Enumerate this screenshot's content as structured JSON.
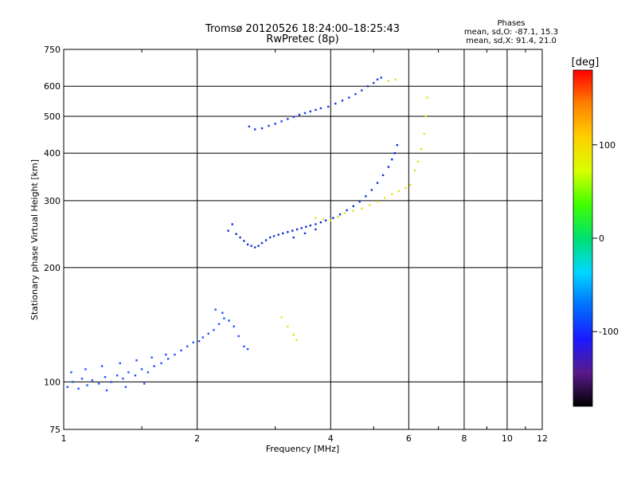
{
  "chart_data": {
    "type": "scatter",
    "title": "Tromsø 20120526 18:24:00–18:25:43",
    "subtitle": "RwPretec (8p)",
    "xlabel": "Frequency [MHz]",
    "ylabel": "Stationary phase Virtual Height [km]",
    "x_scale": "log",
    "y_scale": "log",
    "xlim": [
      1,
      12
    ],
    "ylim": [
      75,
      750
    ],
    "x_ticks": [
      1,
      2,
      4,
      6,
      8,
      10,
      12
    ],
    "x_tick_labels": [
      "1",
      "2",
      "4",
      "6",
      "8",
      "10",
      "12"
    ],
    "y_ticks": [
      75,
      100,
      200,
      300,
      400,
      500,
      600,
      750
    ],
    "y_tick_labels": [
      "75",
      "100",
      "200",
      "300",
      "400",
      "500",
      "600",
      "750"
    ],
    "grid": true,
    "phases": {
      "heading": "Phases",
      "line_o": "mean, sd,O: -87.1, 15.3",
      "line_x": "mean, sd,X:  91.4, 21.0"
    },
    "colorbar": {
      "label": "[deg]",
      "range": [
        -180,
        180
      ],
      "ticks": [
        100,
        0,
        -100
      ],
      "tick_labels": [
        "100",
        "0",
        "-100"
      ],
      "colors": [
        "#000000",
        "#5a1a8c",
        "#1a1aff",
        "#0070ff",
        "#00d8ff",
        "#00e070",
        "#40ff00",
        "#d8ff00",
        "#ffd000",
        "#ff8000",
        "#ff0000"
      ]
    },
    "series": [
      {
        "points": [
          [
            1.02,
            97
          ],
          [
            1.05,
            100
          ],
          [
            1.08,
            96
          ],
          [
            1.1,
            102
          ],
          [
            1.13,
            98
          ],
          [
            1.16,
            101
          ],
          [
            1.2,
            99
          ],
          [
            1.24,
            103
          ],
          [
            1.28,
            100
          ],
          [
            1.32,
            104
          ],
          [
            1.36,
            102
          ],
          [
            1.4,
            106
          ],
          [
            1.45,
            104
          ],
          [
            1.5,
            108
          ],
          [
            1.55,
            106
          ],
          [
            1.6,
            110
          ],
          [
            1.66,
            112
          ],
          [
            1.72,
            115
          ],
          [
            1.78,
            118
          ],
          [
            1.84,
            121
          ],
          [
            1.9,
            124
          ],
          [
            1.96,
            127
          ],
          [
            2.02,
            128
          ],
          [
            2.06,
            131
          ],
          [
            2.12,
            134
          ],
          [
            2.18,
            137
          ],
          [
            2.24,
            142
          ],
          [
            2.3,
            147
          ],
          [
            2.36,
            145
          ],
          [
            2.42,
            140
          ],
          [
            2.48,
            132
          ],
          [
            2.55,
            124
          ],
          [
            2.6,
            122
          ],
          [
            1.04,
            106
          ],
          [
            1.12,
            108
          ],
          [
            1.22,
            110
          ],
          [
            1.34,
            112
          ],
          [
            1.46,
            114
          ],
          [
            1.58,
            116
          ],
          [
            1.7,
            118
          ],
          [
            1.25,
            95
          ],
          [
            1.38,
            97
          ],
          [
            1.52,
            99
          ],
          [
            2.2,
            155
          ],
          [
            2.28,
            152
          ]
        ]
      },
      {
        "points": [
          [
            2.45,
            245
          ],
          [
            2.5,
            240
          ],
          [
            2.55,
            235
          ],
          [
            2.6,
            230
          ],
          [
            2.65,
            228
          ],
          [
            2.7,
            226
          ],
          [
            2.75,
            228
          ],
          [
            2.8,
            232
          ],
          [
            2.86,
            236
          ],
          [
            2.92,
            240
          ],
          [
            2.98,
            242
          ],
          [
            3.05,
            244
          ],
          [
            3.12,
            246
          ],
          [
            3.2,
            248
          ],
          [
            3.28,
            250
          ],
          [
            3.36,
            252
          ],
          [
            3.44,
            254
          ],
          [
            3.52,
            256
          ],
          [
            3.6,
            258
          ],
          [
            3.7,
            260
          ],
          [
            3.8,
            263
          ],
          [
            3.9,
            266
          ],
          [
            4.05,
            270
          ],
          [
            4.2,
            276
          ],
          [
            4.35,
            283
          ],
          [
            4.5,
            290
          ],
          [
            4.65,
            298
          ],
          [
            4.8,
            308
          ],
          [
            4.95,
            320
          ],
          [
            5.1,
            334
          ],
          [
            5.25,
            350
          ],
          [
            5.4,
            368
          ],
          [
            5.5,
            385
          ],
          [
            5.58,
            400
          ],
          [
            5.65,
            420
          ],
          [
            3.3,
            240
          ],
          [
            3.5,
            246
          ],
          [
            3.7,
            252
          ],
          [
            2.4,
            260
          ],
          [
            2.35,
            250
          ]
        ]
      },
      {
        "points": [
          [
            2.62,
            470
          ],
          [
            2.7,
            462
          ],
          [
            2.8,
            465
          ],
          [
            2.9,
            472
          ],
          [
            3.0,
            478
          ],
          [
            3.1,
            485
          ],
          [
            3.2,
            492
          ],
          [
            3.3,
            498
          ],
          [
            3.4,
            505
          ],
          [
            3.5,
            510
          ],
          [
            3.6,
            515
          ],
          [
            3.7,
            520
          ],
          [
            3.8,
            525
          ],
          [
            3.95,
            530
          ],
          [
            4.1,
            540
          ],
          [
            4.25,
            550
          ],
          [
            4.4,
            560
          ],
          [
            4.55,
            572
          ],
          [
            4.7,
            585
          ],
          [
            4.85,
            600
          ],
          [
            5.0,
            612
          ],
          [
            5.1,
            625
          ],
          [
            5.2,
            632
          ]
        ]
      },
      {
        "points": [
          [
            3.7,
            270
          ],
          [
            3.85,
            268
          ],
          [
            4.0,
            266
          ],
          [
            4.15,
            272
          ],
          [
            4.3,
            278
          ],
          [
            4.5,
            282
          ],
          [
            4.7,
            286
          ],
          [
            4.9,
            292
          ],
          [
            5.1,
            298
          ],
          [
            5.3,
            305
          ],
          [
            5.5,
            312
          ],
          [
            5.7,
            318
          ],
          [
            5.9,
            324
          ],
          [
            6.05,
            330
          ],
          [
            5.4,
            620
          ],
          [
            5.6,
            625
          ],
          [
            6.2,
            360
          ],
          [
            6.3,
            380
          ],
          [
            6.4,
            410
          ],
          [
            6.5,
            450
          ],
          [
            6.55,
            500
          ],
          [
            6.6,
            560
          ],
          [
            3.1,
            148
          ],
          [
            3.2,
            140
          ],
          [
            3.3,
            133
          ],
          [
            3.35,
            129
          ]
        ]
      }
    ]
  }
}
